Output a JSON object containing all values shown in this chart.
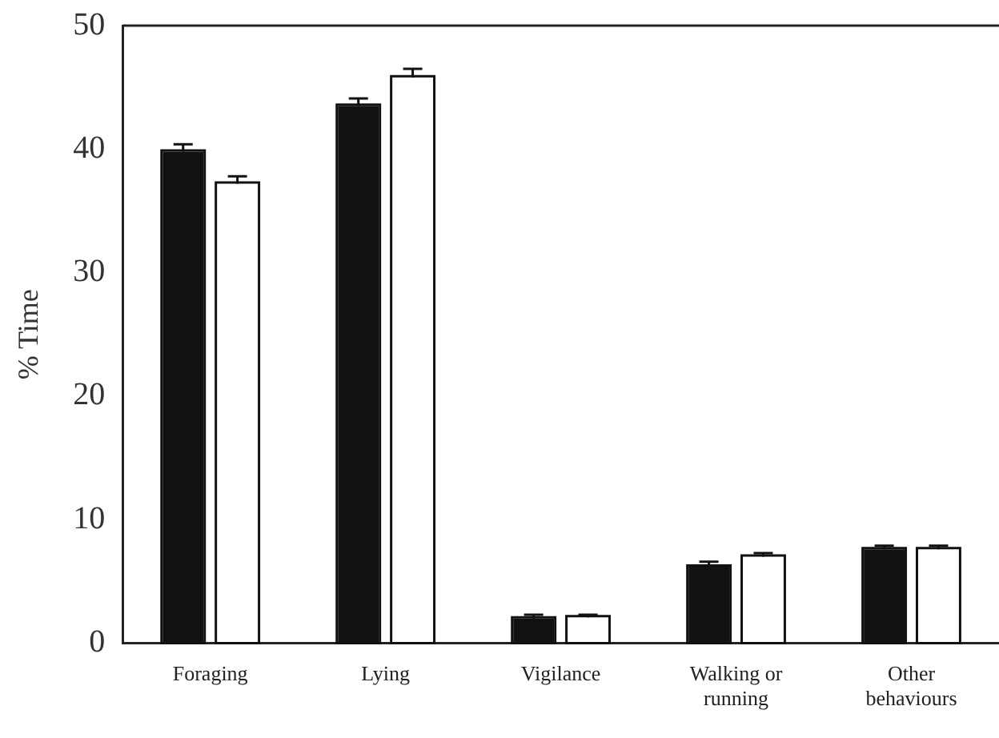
{
  "chart_data": {
    "type": "bar",
    "ylabel": "% Time",
    "categories": [
      "Foraging",
      "Lying",
      "Vigilance",
      "Walking or running",
      "Other behaviours"
    ],
    "series": [
      {
        "color": "#111111",
        "values": [
          39.8,
          43.5,
          2.0,
          6.2,
          7.6
        ],
        "errors": [
          [
            39.8,
            40.4
          ],
          [
            43.5,
            44.1
          ],
          [
            2.0,
            2.3
          ],
          [
            6.2,
            6.6
          ],
          [
            7.6,
            7.9
          ]
        ]
      },
      {
        "color": "#ffffff",
        "values": [
          37.2,
          45.8,
          2.1,
          7.0,
          7.6
        ],
        "errors": [
          [
            37.2,
            37.8
          ],
          [
            45.8,
            46.5
          ],
          [
            2.1,
            2.3
          ],
          [
            7.0,
            7.3
          ],
          [
            7.6,
            7.9
          ]
        ]
      }
    ],
    "ylim": [
      0,
      50
    ],
    "yticks": [
      0,
      10,
      20,
      30,
      40,
      50
    ],
    "grid": false,
    "legend": false
  }
}
